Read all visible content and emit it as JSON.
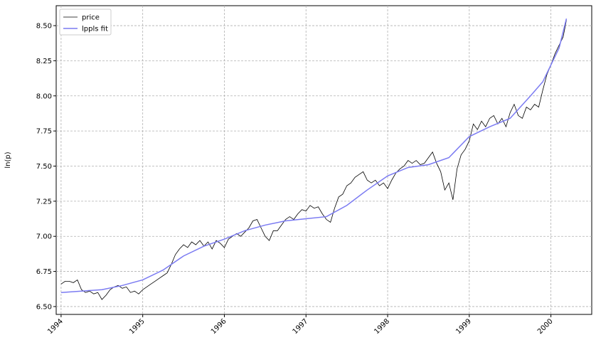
{
  "chart_data": {
    "type": "line",
    "ylabel": "ln(p)",
    "xlim": [
      1993.94,
      2000.5
    ],
    "ylim": [
      6.444,
      8.642
    ],
    "xticks": [
      1994,
      1995,
      1996,
      1997,
      1998,
      1999,
      2000
    ],
    "yticks": [
      {
        "value": 6.5,
        "label": "6.50"
      },
      {
        "value": 6.75,
        "label": "6.75"
      },
      {
        "value": 7.0,
        "label": "7.00"
      },
      {
        "value": 7.25,
        "label": "7.25"
      },
      {
        "value": 7.5,
        "label": "7.50"
      },
      {
        "value": 7.75,
        "label": "7.75"
      },
      {
        "value": 8.0,
        "label": "8.00"
      },
      {
        "value": 8.25,
        "label": "8.25"
      },
      {
        "value": 8.5,
        "label": "8.50"
      }
    ],
    "grid": true,
    "legend": "upper left",
    "series": [
      {
        "name": "price",
        "color": "#000000",
        "x": [
          1994,
          1994.05,
          1994.1,
          1994.15,
          1994.2,
          1994.25,
          1994.3,
          1994.35,
          1994.4,
          1994.45,
          1994.5,
          1994.55,
          1994.6,
          1994.65,
          1994.7,
          1994.75,
          1994.8,
          1994.85,
          1994.9,
          1994.95,
          1995,
          1995.05,
          1995.1,
          1995.15,
          1995.2,
          1995.25,
          1995.3,
          1995.35,
          1995.4,
          1995.45,
          1995.5,
          1995.55,
          1995.6,
          1995.65,
          1995.7,
          1995.75,
          1995.8,
          1995.85,
          1995.9,
          1995.95,
          1996,
          1996.05,
          1996.1,
          1996.15,
          1996.2,
          1996.25,
          1996.3,
          1996.35,
          1996.4,
          1996.45,
          1996.5,
          1996.55,
          1996.6,
          1996.65,
          1996.7,
          1996.75,
          1996.8,
          1996.85,
          1996.9,
          1996.95,
          1997,
          1997.05,
          1997.1,
          1997.15,
          1997.2,
          1997.25,
          1997.3,
          1997.35,
          1997.4,
          1997.45,
          1997.5,
          1997.55,
          1997.6,
          1997.65,
          1997.7,
          1997.75,
          1997.8,
          1997.85,
          1997.9,
          1997.95,
          1998,
          1998.05,
          1998.1,
          1998.15,
          1998.2,
          1998.25,
          1998.3,
          1998.35,
          1998.4,
          1998.45,
          1998.5,
          1998.55,
          1998.6,
          1998.65,
          1998.7,
          1998.75,
          1998.8,
          1998.85,
          1998.9,
          1998.95,
          1999,
          1999.05,
          1999.1,
          1999.15,
          1999.2,
          1999.25,
          1999.3,
          1999.35,
          1999.4,
          1999.45,
          1999.5,
          1999.55,
          1999.6,
          1999.65,
          1999.7,
          1999.75,
          1999.8,
          1999.85,
          1999.9,
          1999.95,
          2000,
          2000.05,
          2000.1,
          2000.15,
          2000.19
        ],
        "values": [
          6.66,
          6.68,
          6.68,
          6.67,
          6.69,
          6.62,
          6.6,
          6.61,
          6.59,
          6.6,
          6.55,
          6.58,
          6.62,
          6.64,
          6.65,
          6.63,
          6.64,
          6.6,
          6.61,
          6.59,
          6.62,
          6.64,
          6.66,
          6.68,
          6.7,
          6.72,
          6.74,
          6.8,
          6.87,
          6.91,
          6.94,
          6.92,
          6.96,
          6.94,
          6.97,
          6.93,
          6.96,
          6.91,
          6.97,
          6.95,
          6.92,
          6.98,
          7.0,
          7.02,
          7.0,
          7.03,
          7.06,
          7.11,
          7.12,
          7.06,
          7.0,
          6.97,
          7.04,
          7.04,
          7.08,
          7.12,
          7.14,
          7.12,
          7.16,
          7.19,
          7.18,
          7.22,
          7.2,
          7.21,
          7.16,
          7.12,
          7.1,
          7.2,
          7.28,
          7.3,
          7.36,
          7.38,
          7.42,
          7.44,
          7.46,
          7.4,
          7.38,
          7.4,
          7.36,
          7.38,
          7.34,
          7.4,
          7.45,
          7.48,
          7.5,
          7.54,
          7.52,
          7.54,
          7.51,
          7.52,
          7.56,
          7.6,
          7.52,
          7.46,
          7.33,
          7.38,
          7.26,
          7.48,
          7.58,
          7.62,
          7.68,
          7.8,
          7.76,
          7.82,
          7.78,
          7.84,
          7.86,
          7.8,
          7.84,
          7.78,
          7.88,
          7.94,
          7.86,
          7.84,
          7.92,
          7.9,
          7.94,
          7.92,
          8.04,
          8.15,
          8.22,
          8.3,
          8.36,
          8.42,
          8.54
        ]
      },
      {
        "name": "lppls fit",
        "color": "#7b7bf2",
        "x": [
          1994,
          1994.25,
          1994.5,
          1994.75,
          1995,
          1995.25,
          1995.5,
          1995.75,
          1996,
          1996.25,
          1996.5,
          1996.75,
          1997,
          1997.25,
          1997.5,
          1997.75,
          1998,
          1998.25,
          1998.5,
          1998.75,
          1999,
          1999.25,
          1999.5,
          1999.75,
          1999.9,
          2000,
          2000.1,
          2000.19
        ],
        "values": [
          6.6,
          6.61,
          6.62,
          6.65,
          6.69,
          6.76,
          6.86,
          6.93,
          6.98,
          7.04,
          7.08,
          7.11,
          7.125,
          7.14,
          7.22,
          7.33,
          7.43,
          7.49,
          7.51,
          7.56,
          7.71,
          7.78,
          7.84,
          8.0,
          8.1,
          8.22,
          8.34,
          8.55
        ]
      }
    ]
  }
}
